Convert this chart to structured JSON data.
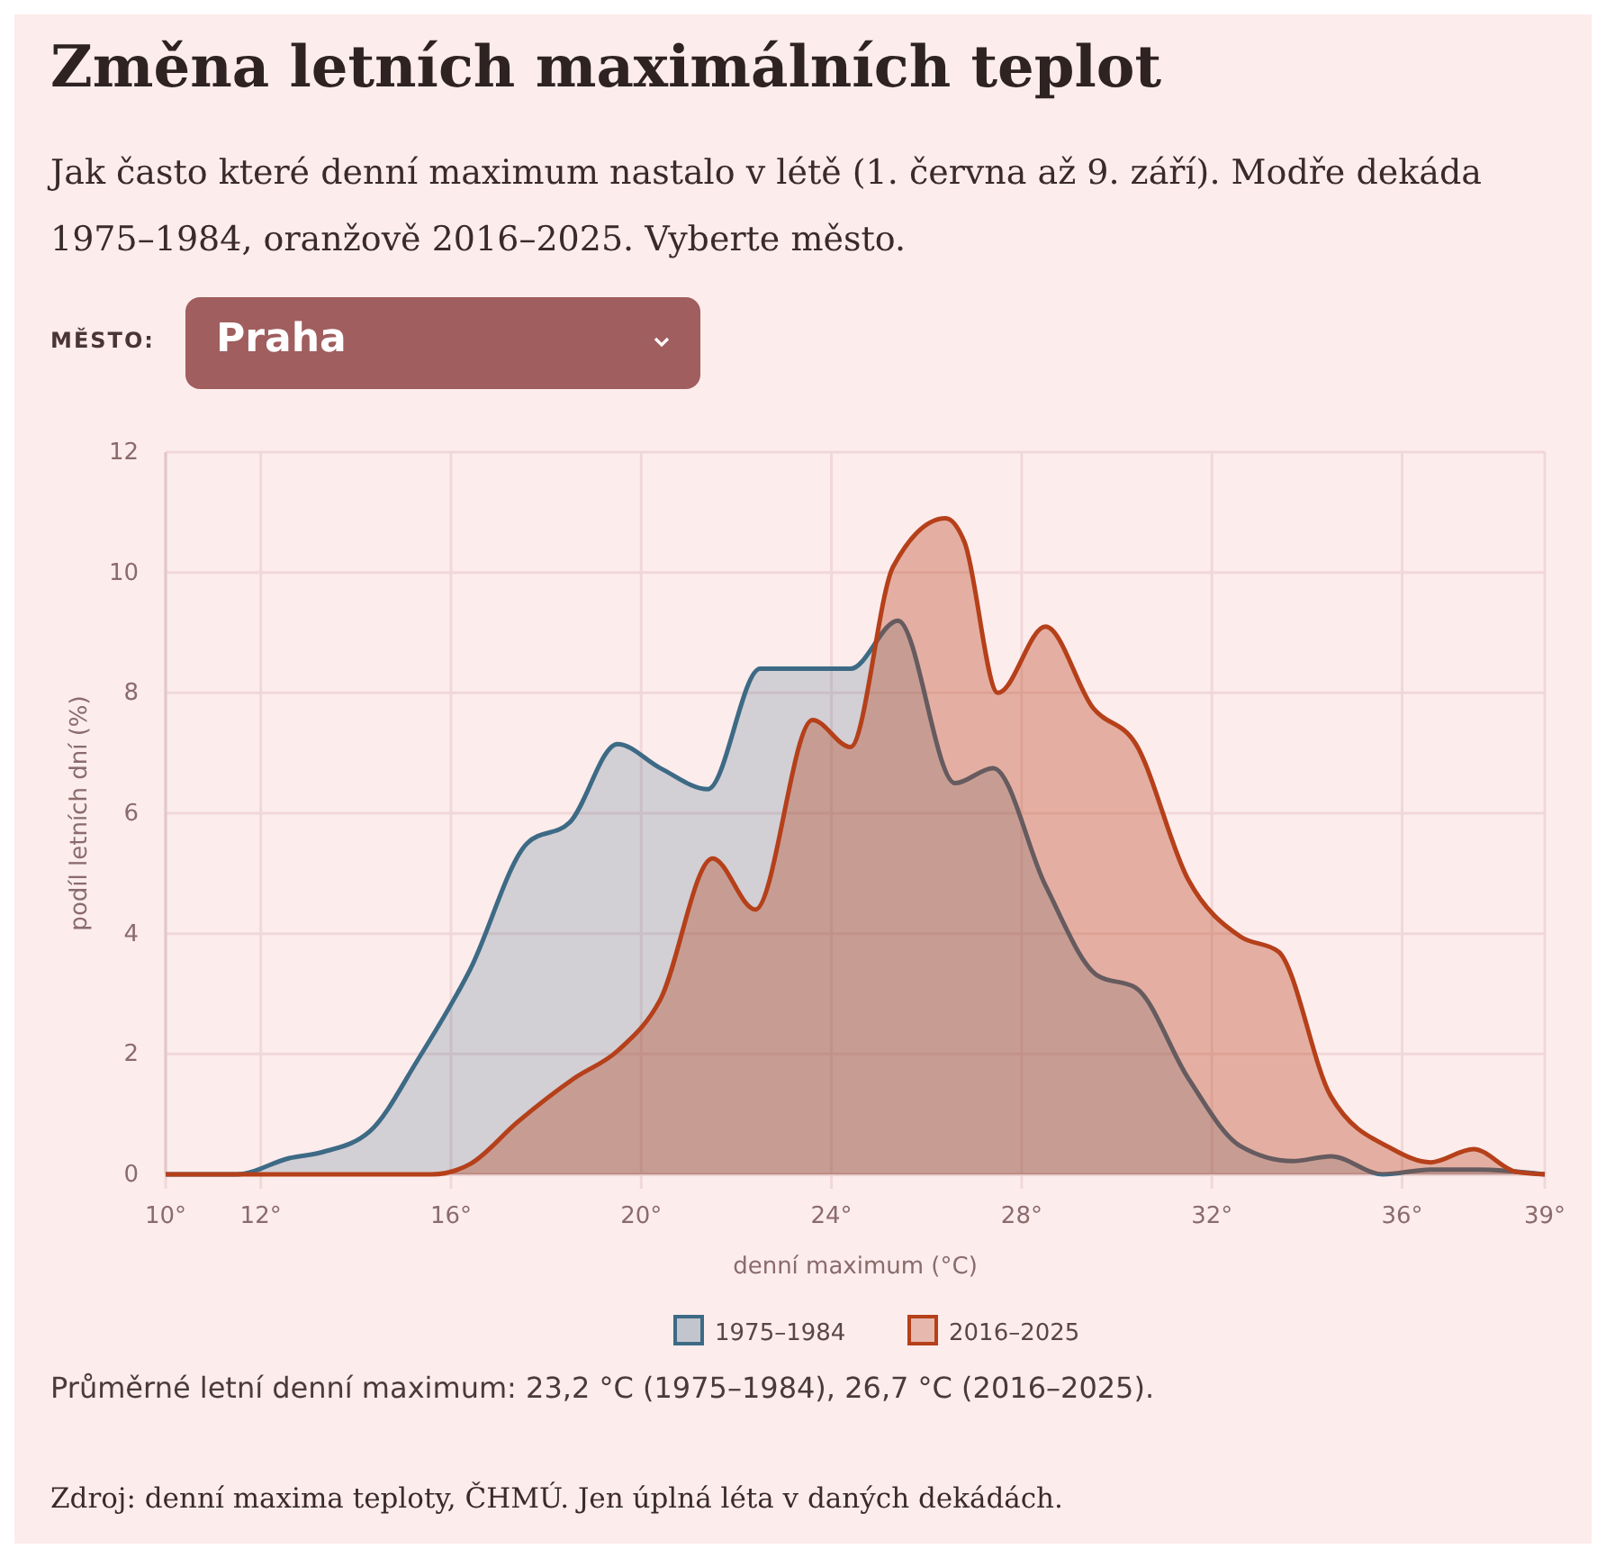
{
  "chart_data": {
    "type": "area",
    "title": "Změna letních maximálních teplot",
    "subtitle": "Jak často které denní maximum nastalo v létě (1. června až 9. září). Modře dekáda 1975–1984, oranžově 2016–2025. Vyberte město.",
    "xlabel": "denní maximum (°C)",
    "ylabel": "podíl letních dní (%)",
    "xlim": [
      10,
      39
    ],
    "xticks": [
      {
        "value": 10,
        "label": "10°"
      },
      {
        "value": 12,
        "label": "12°"
      },
      {
        "value": 16,
        "label": "16°"
      },
      {
        "value": 20,
        "label": "20°"
      },
      {
        "value": 24,
        "label": "24°"
      },
      {
        "value": 28,
        "label": "28°"
      },
      {
        "value": 32,
        "label": "32°"
      },
      {
        "value": 36,
        "label": "36°"
      },
      {
        "value": 39,
        "label": "39°"
      }
    ],
    "ylim": [
      0,
      12
    ],
    "yticks": [
      0,
      2,
      4,
      6,
      8,
      10,
      12
    ],
    "grid": true,
    "legend": "bottom",
    "series": [
      {
        "name": "1975–1984",
        "color": "#3d6a85",
        "x": [
          10,
          11.5,
          12.6,
          13.3,
          14.3,
          15.3,
          16.4,
          17.6,
          18.5,
          19.5,
          20.4,
          21.4,
          22.5,
          23.4,
          24.4,
          25.4,
          26.6,
          27.4,
          28.5,
          29.6,
          30.4,
          31.5,
          32.6,
          33.7,
          34.5,
          35.6,
          36.6,
          37.6,
          39
        ],
        "values": [
          0,
          0,
          0.27,
          0.37,
          0.72,
          1.9,
          3.4,
          5.5,
          5.85,
          7.15,
          6.75,
          6.4,
          8.4,
          8.4,
          8.4,
          9.2,
          6.5,
          6.75,
          4.8,
          3.3,
          3.1,
          1.6,
          0.47,
          0.22,
          0.3,
          0,
          0.08,
          0.08,
          0
        ]
      },
      {
        "name": "2016–2025",
        "color": "#b5401a",
        "x": [
          10,
          15.6,
          16.4,
          17.4,
          18.6,
          19.5,
          20.4,
          21.5,
          22.4,
          23.6,
          24.4,
          25.3,
          26.4,
          26.8,
          27.5,
          28.5,
          29.5,
          30.4,
          31.5,
          32.6,
          33.4,
          34.5,
          35.8,
          36.6,
          37.5,
          38.4,
          39
        ],
        "values": [
          0,
          0,
          0.17,
          0.87,
          1.6,
          2.05,
          2.9,
          5.25,
          4.4,
          7.55,
          7.1,
          10.1,
          10.9,
          10.5,
          8,
          9.1,
          7.75,
          7.15,
          4.9,
          3.95,
          3.7,
          1.3,
          0.42,
          0.2,
          0.42,
          0.04,
          0
        ]
      }
    ],
    "annotations": [
      "MĚSTO:",
      "Praha",
      "Průměrné letní denní maximum: 23,2 °C (1975–1984), 26,7 °C (2016–2025).",
      "Zdroj: denní maxima teploty, ČHMÚ. Jen úplná léta v daných dekádách."
    ]
  }
}
